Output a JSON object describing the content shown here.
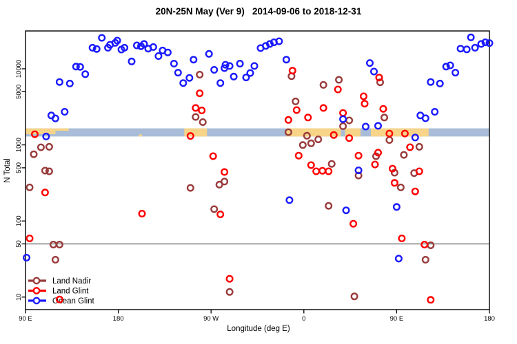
{
  "chart_data": {
    "type": "scatter",
    "title": "20N-25N May (Ver 9)   2014-09-06 to 2018-12-31",
    "xlabel": "Longitude (deg E)",
    "ylabel": "N Total",
    "x_axis": {
      "note": "degrees eastward along axis starting at 90E; 0=90E, 90=180, 180=90W, 270=0, 360=90E, 450=180",
      "range_deg": [
        0,
        450
      ],
      "tick_pos_deg": [
        0,
        90,
        180,
        270,
        360,
        450
      ],
      "tick_labels": [
        "90 E",
        "180",
        "90 W",
        "0",
        "90 E",
        "180"
      ]
    },
    "y_axis": {
      "scale": "log",
      "tick_values": [
        10000,
        5000,
        1000,
        500,
        100,
        50,
        10
      ],
      "range": [
        7,
        30000
      ]
    },
    "reference_line": {
      "value": 50,
      "color": "#808080"
    },
    "map_strip": {
      "top_N": 1650,
      "bottom_N": 1290,
      "ocean_color": "#a9bdd8",
      "land_color": "#f7d488",
      "land_segments": [
        {
          "t": [
            0,
            29
          ],
          "frac": 0.72,
          "align": "top"
        },
        {
          "t": [
            29,
            42
          ],
          "frac": 0.3,
          "align": "top"
        },
        {
          "t": [
            110,
            113
          ],
          "frac": 0.25,
          "align": "bottom"
        },
        {
          "t": [
            154,
            176
          ],
          "frac": 1,
          "align": "full"
        },
        {
          "t": [
            253,
            306
          ],
          "frac": 1,
          "align": "full"
        },
        {
          "t": [
            310,
            325
          ],
          "frac": 1,
          "align": "full"
        },
        {
          "t": [
            335,
            391
          ],
          "frac": 1,
          "align": "full"
        }
      ]
    },
    "legend": {
      "position": "bottom-left",
      "items": [
        "Land Nadir",
        "Land Glint",
        "Ocean Glint"
      ]
    },
    "series": [
      {
        "name": "Land Nadir",
        "color": "#993b3b",
        "points": [
          [
            15,
            930
          ],
          [
            23,
            944
          ],
          [
            8,
            754
          ],
          [
            19,
            459
          ],
          [
            23,
            450
          ],
          [
            4,
            276
          ],
          [
            27,
            49
          ],
          [
            33,
            49
          ],
          [
            29,
            31
          ],
          [
            169,
            8370
          ],
          [
            165,
            2330
          ],
          [
            172,
            1990
          ],
          [
            160,
            272
          ],
          [
            183,
            143
          ],
          [
            188,
            300
          ],
          [
            193,
            330
          ],
          [
            198,
            11.7
          ],
          [
            258,
            8000
          ],
          [
            289,
            6140
          ],
          [
            304,
            7160
          ],
          [
            262,
            3730
          ],
          [
            255,
            1470
          ],
          [
            273,
            1320
          ],
          [
            269,
            995
          ],
          [
            277,
            1050
          ],
          [
            284,
            1180
          ],
          [
            297,
            563
          ],
          [
            314,
            2100
          ],
          [
            308,
            1760
          ],
          [
            294,
            158
          ],
          [
            319,
            10.2
          ],
          [
            323,
            396
          ],
          [
            340,
            710
          ],
          [
            344,
            6650
          ],
          [
            348,
            2290
          ],
          [
            353,
            1160
          ],
          [
            367,
            740
          ],
          [
            382,
            944
          ],
          [
            364,
            276
          ],
          [
            393,
            48
          ],
          [
            388,
            31
          ],
          [
            377,
            426
          ],
          [
            358,
            431
          ]
        ]
      },
      {
        "name": "Land Glint",
        "color": "#ff0000",
        "points": [
          [
            9,
            1380
          ],
          [
            19,
            237
          ],
          [
            4,
            59
          ],
          [
            33,
            9.3
          ],
          [
            169,
            4770
          ],
          [
            165,
            3060
          ],
          [
            171,
            2840
          ],
          [
            160,
            1310
          ],
          [
            182,
            711
          ],
          [
            193,
            440
          ],
          [
            189,
            122
          ],
          [
            113,
            125
          ],
          [
            198,
            17.4
          ],
          [
            259,
            9450
          ],
          [
            263,
            2870
          ],
          [
            274,
            2290
          ],
          [
            289,
            3060
          ],
          [
            255,
            2130
          ],
          [
            299,
            1350
          ],
          [
            308,
            2630
          ],
          [
            314,
            1230
          ],
          [
            303,
            5350
          ],
          [
            328,
            4350
          ],
          [
            329,
            3480
          ],
          [
            265,
            723
          ],
          [
            277,
            542
          ],
          [
            282,
            450
          ],
          [
            288,
            457
          ],
          [
            294,
            450
          ],
          [
            323,
            723
          ],
          [
            339,
            552
          ],
          [
            342,
            790
          ],
          [
            318,
            92
          ],
          [
            343,
            7670
          ],
          [
            347,
            2980
          ],
          [
            353,
            1410
          ],
          [
            368,
            1410
          ],
          [
            373,
            932
          ],
          [
            358,
            317
          ],
          [
            378,
            245
          ],
          [
            365,
            59
          ],
          [
            387,
            49
          ],
          [
            393,
            9.2
          ],
          [
            356,
            488
          ],
          [
            382,
            450
          ]
        ]
      },
      {
        "name": "Ocean Glint",
        "color": "#1a1aff",
        "points": [
          [
            74,
            25500
          ],
          [
            65,
            18900
          ],
          [
            69,
            18200
          ],
          [
            80,
            18900
          ],
          [
            82,
            20700
          ],
          [
            87,
            21900
          ],
          [
            89,
            23500
          ],
          [
            93,
            17900
          ],
          [
            96,
            18900
          ],
          [
            108,
            20300
          ],
          [
            112,
            19800
          ],
          [
            115,
            21200
          ],
          [
            103,
            12500
          ],
          [
            49,
            10700
          ],
          [
            53,
            10600
          ],
          [
            58,
            8500
          ],
          [
            33,
            6700
          ],
          [
            43,
            6400
          ],
          [
            38,
            2720
          ],
          [
            25,
            2440
          ],
          [
            29,
            2230
          ],
          [
            20,
            1290
          ],
          [
            1,
            33
          ],
          [
            119,
            18400
          ],
          [
            124,
            19300
          ],
          [
            129,
            14700
          ],
          [
            133,
            17400
          ],
          [
            138,
            16400
          ],
          [
            144,
            11700
          ],
          [
            148,
            8900
          ],
          [
            153,
            6500
          ],
          [
            159,
            7600
          ],
          [
            163,
            13200
          ],
          [
            178,
            15700
          ],
          [
            183,
            9700
          ],
          [
            189,
            6500
          ],
          [
            193,
            10200
          ],
          [
            194,
            11300
          ],
          [
            198,
            10900
          ],
          [
            202,
            7900
          ],
          [
            208,
            11700
          ],
          [
            214,
            7700
          ],
          [
            218,
            8800
          ],
          [
            222,
            10900
          ],
          [
            228,
            18700
          ],
          [
            233,
            20000
          ],
          [
            237,
            21200
          ],
          [
            241,
            22300
          ],
          [
            246,
            23000
          ],
          [
            253,
            13200
          ],
          [
            334,
            11900
          ],
          [
            338,
            9200
          ],
          [
            308,
            2180
          ],
          [
            330,
            1740
          ],
          [
            342,
            1780
          ],
          [
            323,
            463
          ],
          [
            256,
            188
          ],
          [
            311,
            138
          ],
          [
            432,
            25900
          ],
          [
            422,
            18400
          ],
          [
            428,
            18000
          ],
          [
            436,
            18900
          ],
          [
            442,
            21200
          ],
          [
            446,
            22300
          ],
          [
            450,
            21800
          ],
          [
            408,
            10700
          ],
          [
            412,
            11100
          ],
          [
            417,
            8900
          ],
          [
            393,
            6700
          ],
          [
            402,
            6400
          ],
          [
            383,
            2440
          ],
          [
            388,
            2240
          ],
          [
            397,
            2720
          ],
          [
            378,
            1250
          ],
          [
            360,
            153
          ],
          [
            362,
            32
          ]
        ]
      }
    ]
  }
}
